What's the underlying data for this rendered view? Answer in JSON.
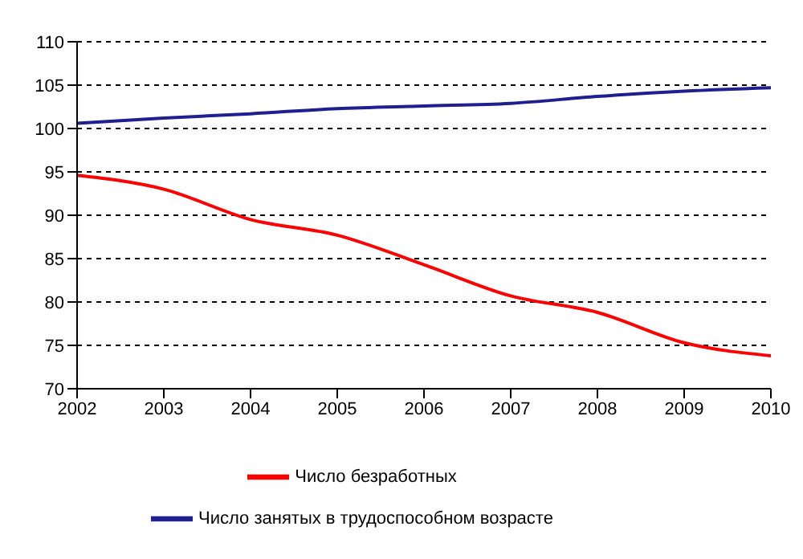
{
  "chart_data": {
    "type": "line",
    "categories": [
      "2002",
      "2003",
      "2004",
      "2005",
      "2006",
      "2007",
      "2008",
      "2009",
      "2010"
    ],
    "series": [
      {
        "name": "Число занятых в трудоспособном возрасте",
        "color": "#1f1f8f",
        "values": [
          100.6,
          101.2,
          101.7,
          102.3,
          102.6,
          102.9,
          103.7,
          104.3,
          104.7
        ]
      },
      {
        "name": "Число безработных",
        "color": "#ff0000",
        "values": [
          94.6,
          93.0,
          89.5,
          87.7,
          84.3,
          80.7,
          78.8,
          75.3,
          73.8
        ]
      }
    ],
    "ylim": [
      70,
      110
    ],
    "yticks": [
      70,
      75,
      80,
      85,
      90,
      95,
      100,
      105,
      110
    ],
    "grid": "y",
    "legend": "bottom",
    "marker": "none",
    "line_style": "solid"
  }
}
